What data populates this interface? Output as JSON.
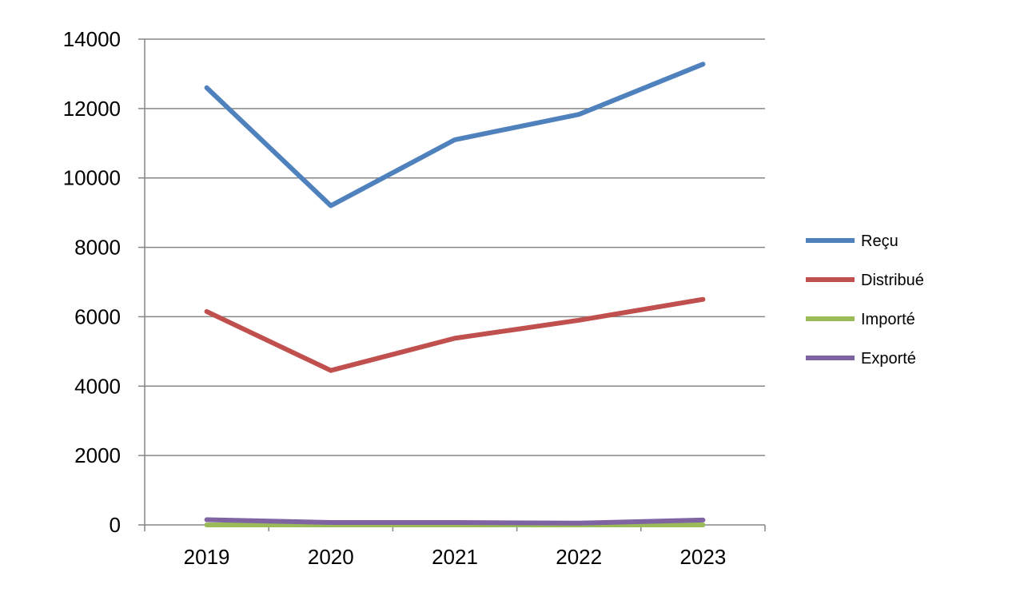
{
  "chart_data": {
    "type": "line",
    "title": "",
    "xlabel": "",
    "ylabel": "",
    "categories": [
      "2019",
      "2020",
      "2021",
      "2022",
      "2023"
    ],
    "ylim": [
      0,
      14000
    ],
    "yticks": [
      "0",
      "2000",
      "4000",
      "6000",
      "8000",
      "10000",
      "12000",
      "14000"
    ],
    "grid": true,
    "legend_position": "right",
    "series": [
      {
        "name": "Reçu",
        "color": "#4f81bd",
        "values": [
          12600,
          9200,
          11100,
          11830,
          13280
        ]
      },
      {
        "name": "Distribué",
        "color": "#c0504d",
        "values": [
          6150,
          4450,
          5380,
          5900,
          6500
        ]
      },
      {
        "name": "Importé",
        "color": "#9bbb59",
        "values": [
          0,
          0,
          0,
          0,
          0
        ]
      },
      {
        "name": "Exporté",
        "color": "#8064a2",
        "values": [
          150,
          70,
          70,
          50,
          140
        ]
      }
    ]
  }
}
